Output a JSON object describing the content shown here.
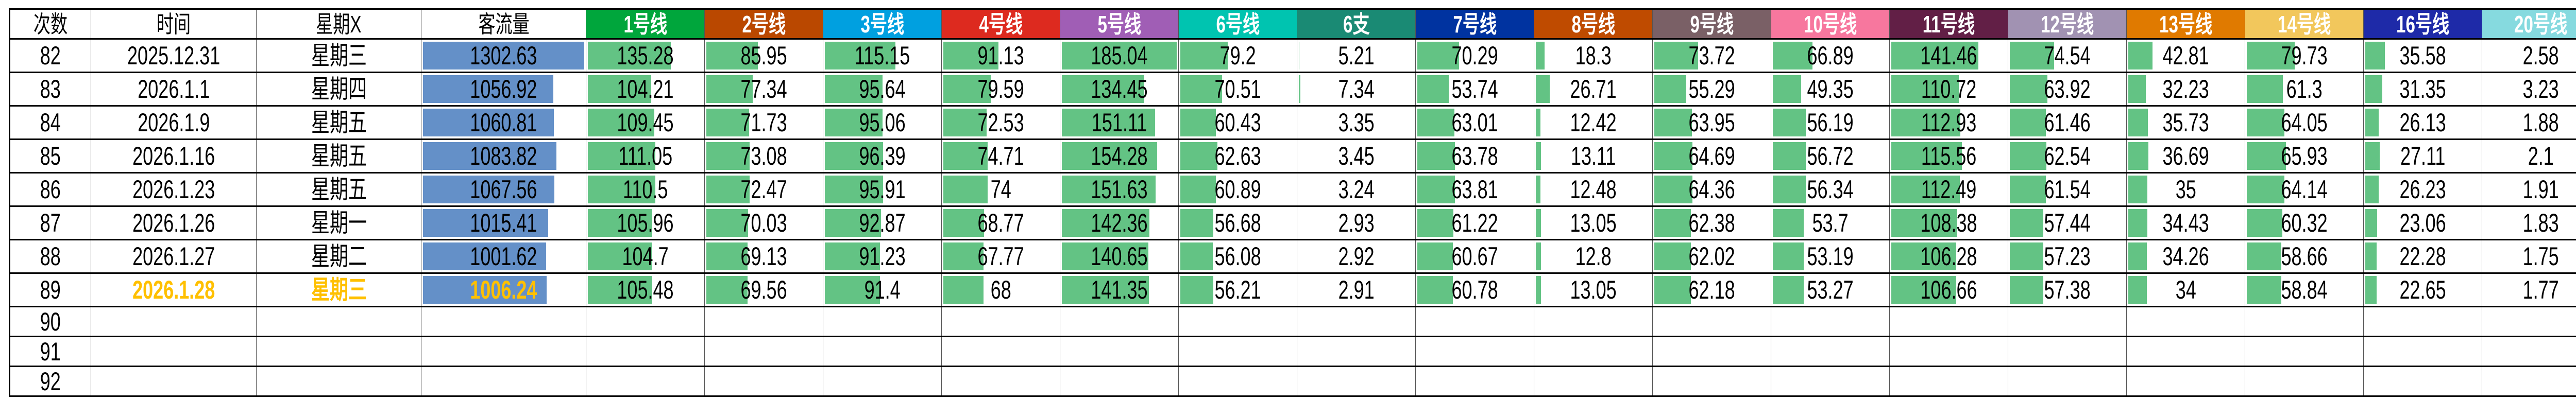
{
  "headers": {
    "index": "次数",
    "date": "时间",
    "weekday": "星期X",
    "flow": "客流量"
  },
  "lines": [
    {
      "label": "1号线",
      "color": "#00A63C"
    },
    {
      "label": "2号线",
      "color": "#BA4800"
    },
    {
      "label": "3号线",
      "color": "#00A0E0"
    },
    {
      "label": "4号线",
      "color": "#DD2A1F"
    },
    {
      "label": "5号线",
      "color": "#A05EB5"
    },
    {
      "label": "6号线",
      "color": "#00C4B0"
    },
    {
      "label": "6支",
      "color": "#1A8A74"
    },
    {
      "label": "7号线",
      "color": "#0033A0"
    },
    {
      "label": "8号线",
      "color": "#BF4B00"
    },
    {
      "label": "9号线",
      "color": "#7A6066"
    },
    {
      "label": "10号线",
      "color": "#F7779E"
    },
    {
      "label": "11号线",
      "color": "#621F46"
    },
    {
      "label": "12号线",
      "color": "#A192B2"
    },
    {
      "label": "13号线",
      "color": "#E07A00"
    },
    {
      "label": "14号线",
      "color": "#F2C75C"
    },
    {
      "label": "16号线",
      "color": "#1E2AA8"
    },
    {
      "label": "20号线",
      "color": "#86DADF"
    }
  ],
  "colors": {
    "flow_bar": "#6490C8",
    "line_bar": "#63C384",
    "highlight_text": "#FFC000"
  },
  "rows": [
    {
      "index": "82",
      "date": "2025.12.31",
      "weekday": "星期三",
      "flow": "1302.63",
      "values": [
        "135.28",
        "85.95",
        "115.15",
        "91.13",
        "185.04",
        "79.2",
        "5.21",
        "70.29",
        "18.3",
        "73.72",
        "66.89",
        "141.46",
        "74.54",
        "42.81",
        "79.73",
        "35.58",
        "2.58"
      ]
    },
    {
      "index": "83",
      "date": "2026.1.1",
      "weekday": "星期四",
      "flow": "1056.92",
      "values": [
        "104.21",
        "77.34",
        "95.64",
        "79.59",
        "134.45",
        "70.51",
        "7.34",
        "53.74",
        "26.71",
        "55.29",
        "49.35",
        "110.72",
        "63.92",
        "32.23",
        "61.3",
        "31.35",
        "3.23"
      ]
    },
    {
      "index": "84",
      "date": "2026.1.9",
      "weekday": "星期五",
      "flow": "1060.81",
      "values": [
        "109.45",
        "71.73",
        "95.06",
        "72.53",
        "151.11",
        "60.43",
        "3.35",
        "63.01",
        "12.42",
        "63.95",
        "56.19",
        "112.93",
        "61.46",
        "35.73",
        "64.05",
        "26.13",
        "1.88"
      ]
    },
    {
      "index": "85",
      "date": "2026.1.16",
      "weekday": "星期五",
      "flow": "1083.82",
      "values": [
        "111.05",
        "73.08",
        "96.39",
        "74.71",
        "154.28",
        "62.63",
        "3.45",
        "63.78",
        "13.11",
        "64.69",
        "56.72",
        "115.56",
        "62.54",
        "36.69",
        "65.93",
        "27.11",
        "2.1"
      ]
    },
    {
      "index": "86",
      "date": "2026.1.23",
      "weekday": "星期五",
      "flow": "1067.56",
      "values": [
        "110.5",
        "72.47",
        "95.91",
        "74",
        "151.63",
        "60.89",
        "3.24",
        "63.81",
        "12.48",
        "64.36",
        "56.34",
        "112.49",
        "61.54",
        "35",
        "64.14",
        "26.23",
        "1.91"
      ]
    },
    {
      "index": "87",
      "date": "2026.1.26",
      "weekday": "星期一",
      "flow": "1015.41",
      "values": [
        "105.96",
        "70.03",
        "92.87",
        "68.77",
        "142.36",
        "56.68",
        "2.93",
        "61.22",
        "13.05",
        "62.38",
        "53.7",
        "108.38",
        "57.44",
        "34.43",
        "60.32",
        "23.06",
        "1.83"
      ]
    },
    {
      "index": "88",
      "date": "2026.1.27",
      "weekday": "星期二",
      "flow": "1001.62",
      "values": [
        "104.7",
        "69.13",
        "91.23",
        "67.77",
        "140.65",
        "56.08",
        "2.92",
        "60.67",
        "12.8",
        "62.02",
        "53.19",
        "106.28",
        "57.23",
        "34.26",
        "58.66",
        "22.28",
        "1.75"
      ]
    },
    {
      "index": "89",
      "date": "2026.1.28",
      "weekday": "星期三",
      "flow": "1006.24",
      "highlight": true,
      "values": [
        "105.48",
        "69.56",
        "91.4",
        "68",
        "141.35",
        "56.21",
        "2.91",
        "60.78",
        "13.05",
        "62.18",
        "53.27",
        "106.66",
        "57.38",
        "34",
        "58.84",
        "22.65",
        "1.77"
      ]
    }
  ],
  "empty_rows": [
    "90",
    "91",
    "92"
  ]
}
